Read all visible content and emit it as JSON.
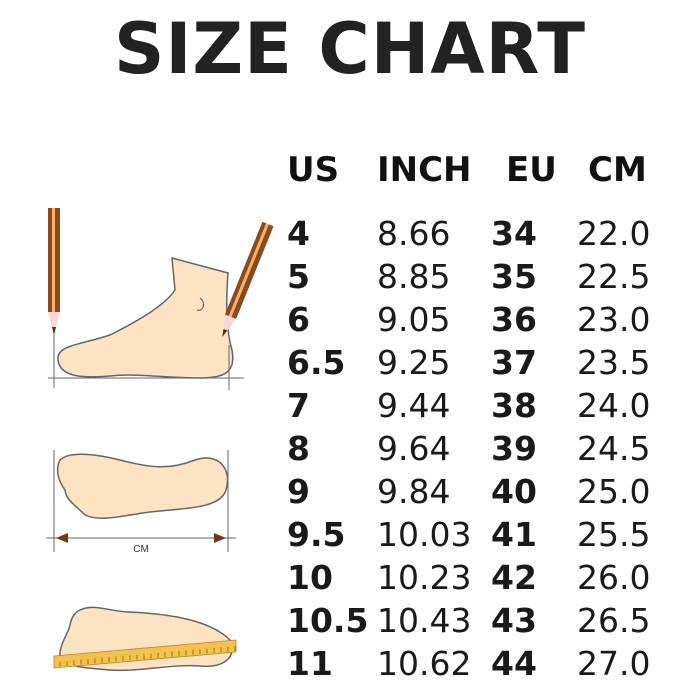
{
  "title": "SIZE CHART",
  "columns": [
    "US",
    "INCH",
    "EU",
    "CM"
  ],
  "rows": [
    [
      "4",
      "8.66",
      "34",
      "22.0"
    ],
    [
      "5",
      "8.85",
      "35",
      "22.5"
    ],
    [
      "6",
      "9.05",
      "36",
      "23.0"
    ],
    [
      "6.5",
      "9.25",
      "37",
      "23.5"
    ],
    [
      "7",
      "9.44",
      "38",
      "24.0"
    ],
    [
      "8",
      "9.64",
      "39",
      "24.5"
    ],
    [
      "9",
      "9.84",
      "40",
      "25.0"
    ],
    [
      "9.5",
      "10.03",
      "41",
      "25.5"
    ],
    [
      "10",
      "10.23",
      "42",
      "26.0"
    ],
    [
      "10.5",
      "10.43",
      "43",
      "26.5"
    ],
    [
      "11",
      "10.62",
      "44",
      "27.0"
    ]
  ],
  "illustration": {
    "measure_label": "CM"
  },
  "colors": {
    "skin": "#fbe3c4",
    "outline": "#666666",
    "pencil": "#8a4a1c",
    "ruler": "#f2c14e"
  }
}
